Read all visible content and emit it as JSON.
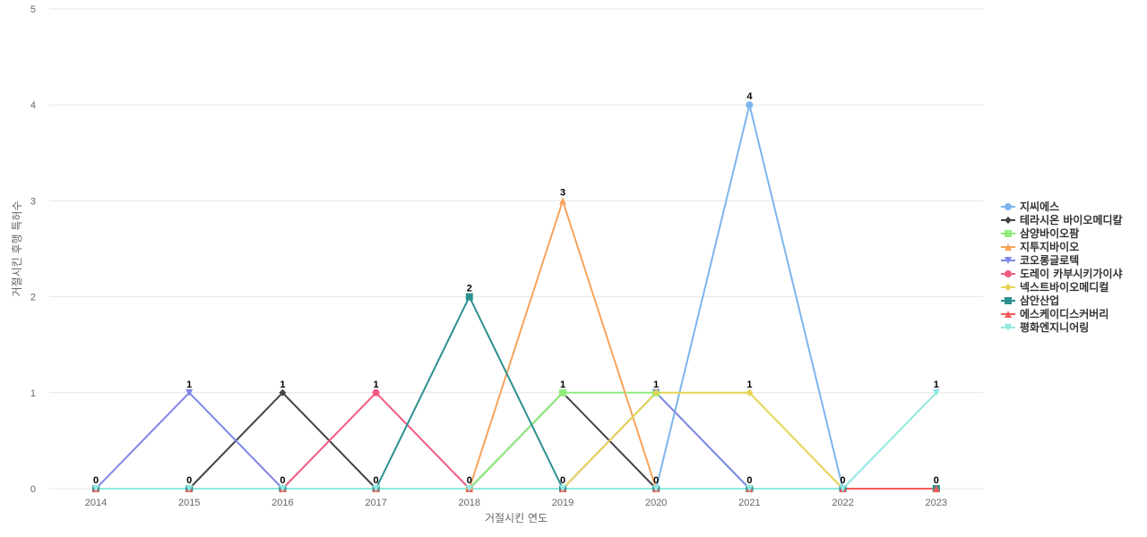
{
  "chart_data": {
    "type": "line",
    "xlabel": "거절시킨 연도",
    "ylabel": "거절시킨 후행 특허수",
    "ylim": [
      0,
      5
    ],
    "yticks": [
      0,
      1,
      2,
      3,
      4,
      5
    ],
    "x": [
      "2014",
      "2015",
      "2016",
      "2017",
      "2018",
      "2019",
      "2020",
      "2021",
      "2022",
      "2023"
    ],
    "grid": true,
    "legend_position": "right",
    "series": [
      {
        "name": "지씨에스",
        "color": "#7cb5ec",
        "marker": "circle",
        "values": [
          0,
          0,
          0,
          0,
          0,
          0,
          0,
          4,
          0,
          0
        ]
      },
      {
        "name": "테라시온 바이오메디칼",
        "color": "#434348",
        "marker": "diamond",
        "values": [
          0,
          0,
          1,
          0,
          0,
          1,
          0,
          0,
          0,
          0
        ]
      },
      {
        "name": "삼양바이오팜",
        "color": "#90ed7d",
        "marker": "square",
        "values": [
          0,
          0,
          0,
          0,
          0,
          1,
          1,
          0,
          0,
          0
        ]
      },
      {
        "name": "지투지바이오",
        "color": "#f7a35c",
        "marker": "triangle",
        "values": [
          0,
          0,
          0,
          0,
          0,
          3,
          0,
          0,
          0,
          0
        ]
      },
      {
        "name": "코오롱글로텍",
        "color": "#8085e9",
        "marker": "triangle-down",
        "values": [
          0,
          1,
          0,
          0,
          0,
          0,
          1,
          0,
          0,
          0
        ]
      },
      {
        "name": "도레이 카부시키가이샤",
        "color": "#f15c80",
        "marker": "circle",
        "values": [
          0,
          0,
          0,
          1,
          0,
          0,
          0,
          0,
          0,
          0
        ]
      },
      {
        "name": "넥스트바이오메디컬",
        "color": "#e4d354",
        "marker": "diamond",
        "values": [
          0,
          0,
          0,
          0,
          0,
          0,
          1,
          1,
          0,
          0
        ]
      },
      {
        "name": "삼안산업",
        "color": "#2b908f",
        "marker": "square",
        "values": [
          0,
          0,
          0,
          0,
          2,
          0,
          0,
          0,
          0,
          0
        ]
      },
      {
        "name": "에스케이디스커버리",
        "color": "#f45b5b",
        "marker": "triangle",
        "values": [
          0,
          0,
          0,
          0,
          0,
          0,
          0,
          0,
          0,
          0
        ]
      },
      {
        "name": "평화엔지니어링",
        "color": "#91e8e1",
        "marker": "triangle-down",
        "values": [
          0,
          0,
          0,
          0,
          0,
          0,
          0,
          0,
          0,
          1
        ]
      }
    ],
    "data_labels": [
      {
        "x": "2014",
        "value": "0"
      },
      {
        "x": "2015",
        "value": "1"
      },
      {
        "x": "2015",
        "value": "0"
      },
      {
        "x": "2016",
        "value": "1"
      },
      {
        "x": "2016",
        "value": "0"
      },
      {
        "x": "2017",
        "value": "1"
      },
      {
        "x": "2017",
        "value": "0"
      },
      {
        "x": "2018",
        "value": "2"
      },
      {
        "x": "2018",
        "value": "0"
      },
      {
        "x": "2019",
        "value": "3"
      },
      {
        "x": "2019",
        "value": "1"
      },
      {
        "x": "2019",
        "value": "0"
      },
      {
        "x": "2020",
        "value": "1"
      },
      {
        "x": "2020",
        "value": "0"
      },
      {
        "x": "2021",
        "value": "4"
      },
      {
        "x": "2021",
        "value": "1"
      },
      {
        "x": "2021",
        "value": "0"
      },
      {
        "x": "2022",
        "value": "0"
      },
      {
        "x": "2023",
        "value": "1"
      },
      {
        "x": "2023",
        "value": "0"
      }
    ]
  }
}
